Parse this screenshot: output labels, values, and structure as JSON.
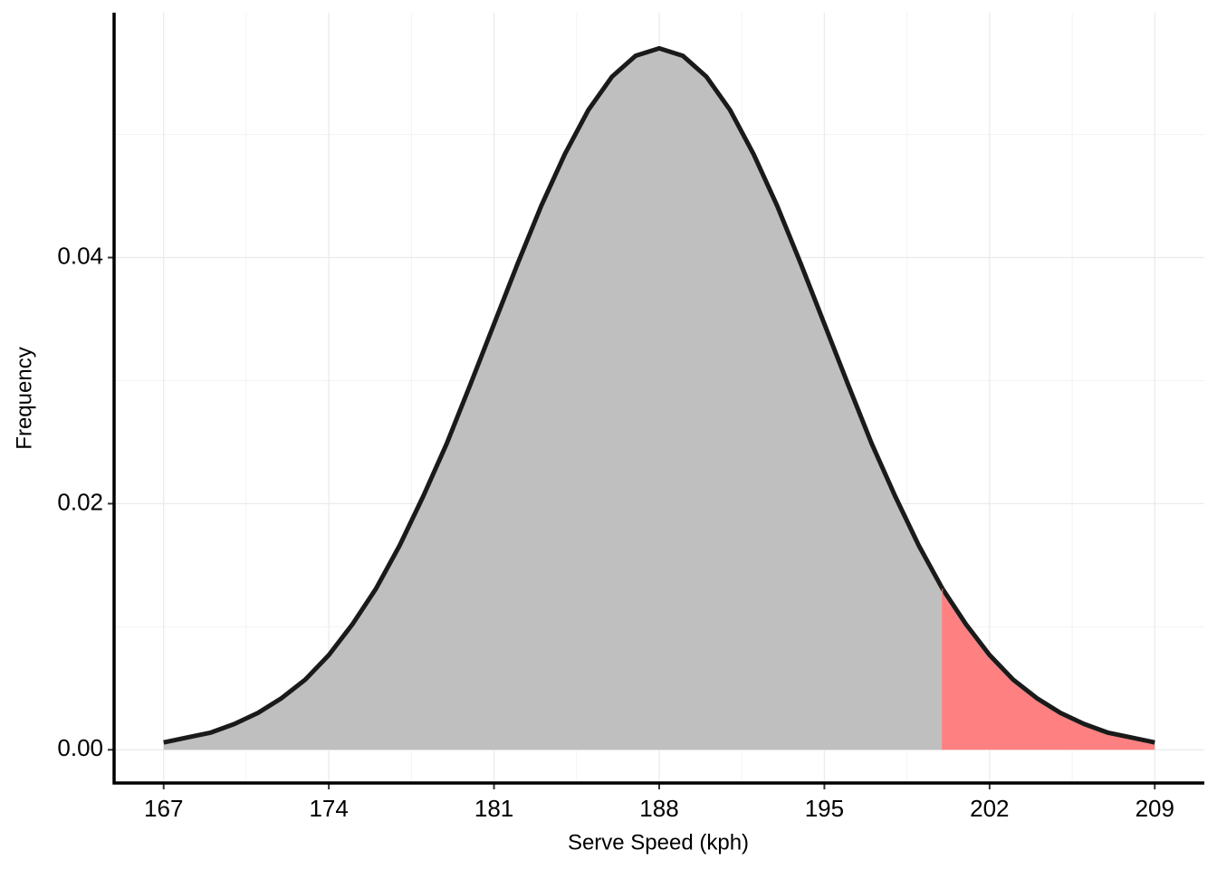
{
  "chart_data": {
    "type": "area",
    "x_label": "Serve Speed (kph)",
    "y_label": "Frequency",
    "x": [
      167,
      168,
      169,
      170,
      171,
      172,
      173,
      174,
      175,
      176,
      177,
      178,
      179,
      180,
      181,
      182,
      183,
      184,
      185,
      186,
      187,
      188,
      189,
      190,
      191,
      192,
      193,
      194,
      195,
      196,
      197,
      198,
      199,
      200,
      201,
      202,
      203,
      204,
      205,
      206,
      207,
      208,
      209
    ],
    "values": [
      0.0006,
      0.001,
      0.0014,
      0.0021,
      0.003,
      0.0042,
      0.0057,
      0.0077,
      0.0102,
      0.0131,
      0.0166,
      0.0206,
      0.0249,
      0.0297,
      0.0346,
      0.0395,
      0.0442,
      0.0484,
      0.052,
      0.0547,
      0.0564,
      0.057,
      0.0564,
      0.0547,
      0.052,
      0.0484,
      0.0442,
      0.0395,
      0.0346,
      0.0297,
      0.0249,
      0.0206,
      0.0166,
      0.0131,
      0.0102,
      0.0077,
      0.0057,
      0.0042,
      0.003,
      0.0021,
      0.0014,
      0.001,
      0.0006
    ],
    "color": "#bfbfbf",
    "line_color": "#1a1a1a",
    "highlight": {
      "x_min": 200,
      "color": "#ff8080"
    },
    "xlim": [
      164.9,
      211.1
    ],
    "xticks": [
      167,
      174,
      181,
      188,
      195,
      202,
      209
    ],
    "ylim": [
      -0.0027,
      0.0599
    ],
    "yticks": [
      {
        "value": 0,
        "label": "0.00"
      },
      {
        "value": 0.02,
        "label": "0.02"
      },
      {
        "value": 0.04,
        "label": "0.04"
      }
    ],
    "grid": true
  }
}
